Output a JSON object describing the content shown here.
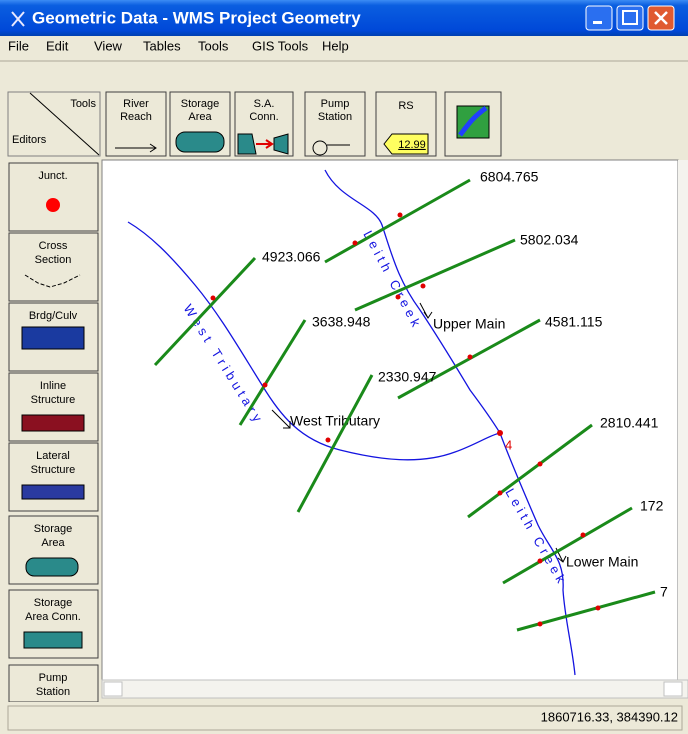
{
  "window": {
    "title": "Geometric Data - WMS Project Geometry"
  },
  "menu": [
    "File",
    "Edit",
    "View",
    "Tables",
    "Tools",
    "GIS Tools",
    "Help"
  ],
  "toolbar": {
    "tools_label": "Tools",
    "editors_label": "Editors",
    "buttons": [
      {
        "lines": [
          "River",
          "Reach"
        ]
      },
      {
        "lines": [
          "Storage",
          "Area"
        ]
      },
      {
        "lines": [
          "S.A.",
          "Conn."
        ]
      },
      {
        "lines": [
          "Pump",
          "Station"
        ]
      },
      {
        "lines": [
          "RS",
          "12.99"
        ]
      }
    ]
  },
  "editors": [
    {
      "lines": [
        "Junct."
      ]
    },
    {
      "lines": [
        "Cross",
        "Section"
      ]
    },
    {
      "lines": [
        "Brdg/Culv"
      ]
    },
    {
      "lines": [
        "Inline",
        "Structure"
      ]
    },
    {
      "lines": [
        "Lateral",
        "Structure"
      ]
    },
    {
      "lines": [
        "Storage",
        "Area"
      ]
    },
    {
      "lines": [
        "Storage",
        "Area Conn."
      ]
    },
    {
      "lines": [
        "Pump",
        "Station"
      ]
    }
  ],
  "map": {
    "cross_sections": [
      {
        "label": "6804.765"
      },
      {
        "label": "5802.034"
      },
      {
        "label": "4923.066"
      },
      {
        "label": "3638.948"
      },
      {
        "label": "4581.115"
      },
      {
        "label": "2330.947"
      },
      {
        "label": "2810.441"
      },
      {
        "label": "172"
      },
      {
        "label": "7"
      }
    ],
    "reaches": [
      {
        "label": "Upper Main"
      },
      {
        "label": "West Tributary"
      },
      {
        "label": "Lower Main"
      }
    ],
    "junction": "4",
    "river_labels": [
      "West Tributary",
      "Leith Creek",
      "Leith Creek"
    ]
  },
  "status": "1860716.33, 384390.12"
}
